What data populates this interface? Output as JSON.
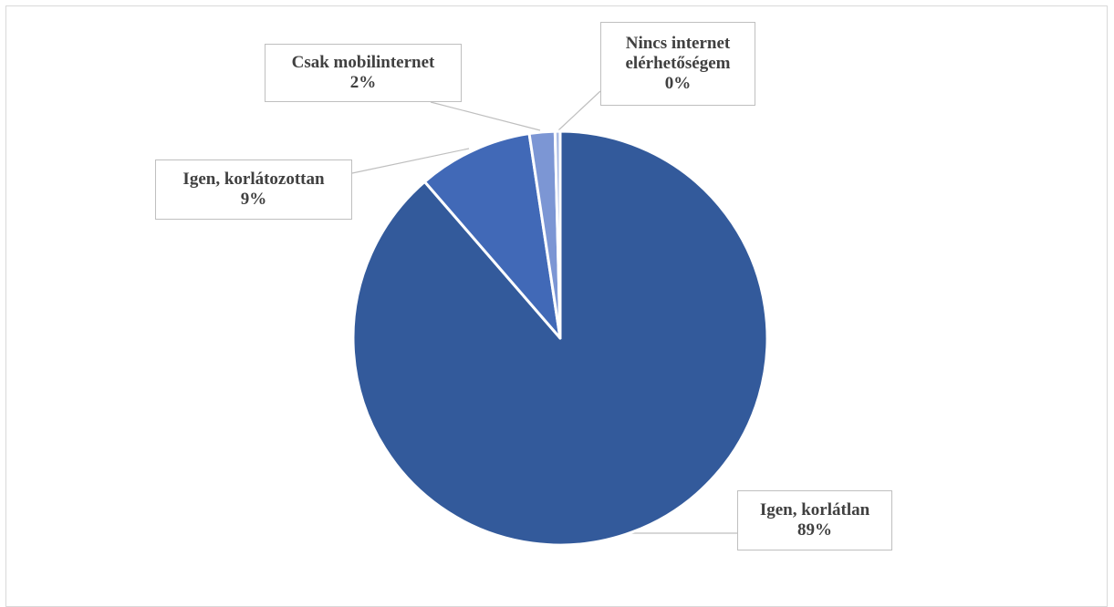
{
  "chart_data": {
    "type": "pie",
    "title": "",
    "slices": [
      {
        "label": "Igen, korlátlan",
        "value": 89,
        "value_label": "89%",
        "color": "#335A9B"
      },
      {
        "label": "Igen, korlátozottan",
        "value": 9,
        "value_label": "9%",
        "color": "#4169B7"
      },
      {
        "label": "Csak mobilinternet",
        "value": 2,
        "value_label": "2%",
        "color": "#7C96D4"
      },
      {
        "label_lines": [
          "Nincs internet",
          "elérhetőségem"
        ],
        "label": "Nincs internet elérhetőségem",
        "value": 0.4,
        "value_label": "0%",
        "color": "#AABBE4"
      }
    ],
    "legend": "none",
    "data_labels": "callout"
  }
}
